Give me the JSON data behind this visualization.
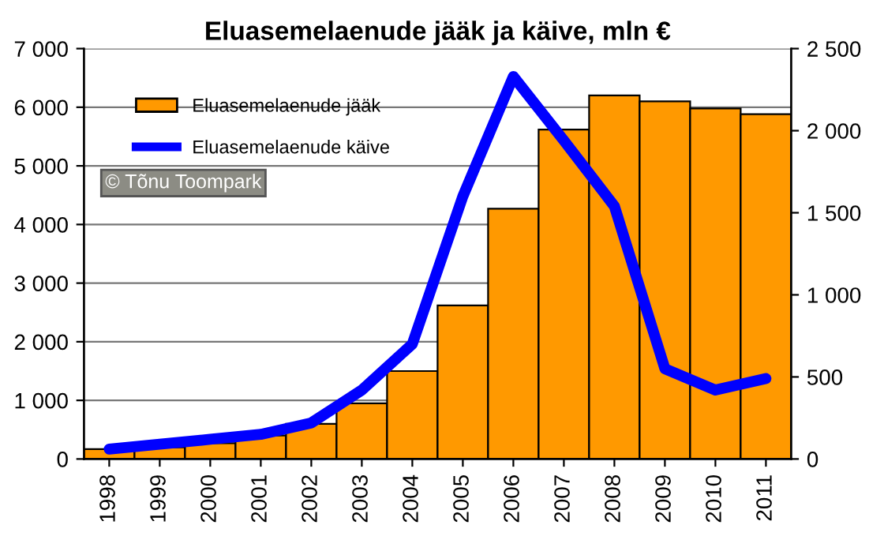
{
  "chart_data": {
    "type": "bar",
    "title": "Eluasemelaenude jääk ja käive, mln €",
    "categories": [
      "1998",
      "1999",
      "2000",
      "2001",
      "2002",
      "2003",
      "2004",
      "2005",
      "2006",
      "2007",
      "2008",
      "2009",
      "2010",
      "2011"
    ],
    "series": [
      {
        "name": "Eluasemelaenude jääk",
        "color": "#ff9900",
        "values": [
          170,
          200,
          270,
          400,
          600,
          950,
          1500,
          2620,
          4270,
          5620,
          6200,
          6100,
          5980,
          5880
        ]
      },
      {
        "name": "Eluasemelaenude käive",
        "type": "line",
        "axis": "y2",
        "color": "#0000ff",
        "values": [
          60,
          90,
          120,
          150,
          220,
          420,
          700,
          1600,
          2330,
          1940,
          1540,
          550,
          420,
          490
        ]
      }
    ],
    "ylim": [
      0,
      7000
    ],
    "yticks": [
      0,
      {
        "value": 1000,
        "label": "1 000"
      },
      {
        "value": 2000,
        "label": "2 000"
      },
      {
        "value": 3000,
        "label": "3 000"
      },
      {
        "value": 4000,
        "label": "4 000"
      },
      {
        "value": 5000,
        "label": "5 000"
      },
      {
        "value": 6000,
        "label": "6 000"
      },
      {
        "value": 7000,
        "label": "7 000"
      }
    ],
    "y2lim": [
      0,
      2500
    ],
    "y2ticks": [
      0,
      500,
      {
        "value": 1000,
        "label": "1 000"
      },
      {
        "value": 1500,
        "label": "1 500"
      },
      {
        "value": 2000,
        "label": "2 000"
      },
      {
        "value": 2500,
        "label": "2 500"
      }
    ],
    "grid": "y",
    "legend": "top left",
    "line_style": "solid",
    "marker": "none",
    "annotations": [
      "© Tõnu Toompark"
    ]
  }
}
